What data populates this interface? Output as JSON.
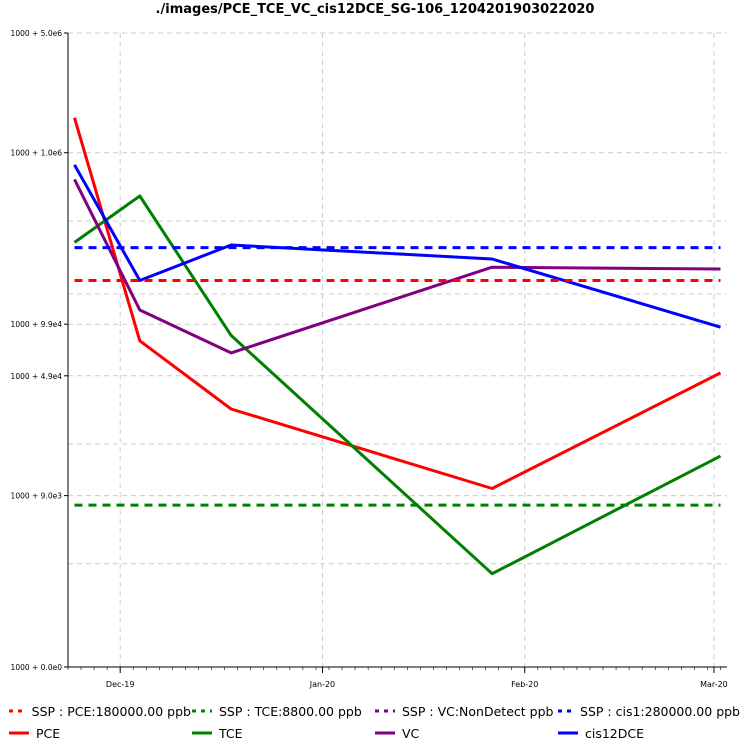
{
  "chart_data": {
    "type": "line",
    "title": "./images/PCE_TCE_VC_cis12DCE_SG-106_1204201903022020",
    "xlabel": "",
    "ylabel": "",
    "y_scale": "log",
    "grid": true,
    "legend_position": "bottom",
    "x_ticks": [
      {
        "label": "Dec-19",
        "date": "2019-12-01"
      },
      {
        "label": "Jan-20",
        "date": "2020-01-01"
      },
      {
        "label": "Feb-20",
        "date": "2020-02-01"
      },
      {
        "label": "Mar-20",
        "date": "2020-03-01"
      }
    ],
    "y_ticks": [
      {
        "label": "1000 + 0.0e0",
        "value": 1000
      },
      {
        "label": "1000 + 9.0e3",
        "value": 10000
      },
      {
        "label": "1000 + 4.9e4",
        "value": 50000
      },
      {
        "label": "1000 + 9.9e4",
        "value": 100000
      },
      {
        "label": "1000 + 1.0e6",
        "value": 1001000
      },
      {
        "label": "1000 + 5.0e6",
        "value": 5001000
      }
    ],
    "x_range": [
      "2019-11-23",
      "2020-03-03"
    ],
    "series": [
      {
        "name": "PCE",
        "color": "#ff0000",
        "style": "solid",
        "x": [
          "2019-11-24",
          "2019-12-04",
          "2019-12-18",
          "2020-01-27",
          "2020-03-02"
        ],
        "y": [
          1600000,
          80000,
          32000,
          11000,
          52000
        ]
      },
      {
        "name": "TCE",
        "color": "#008000",
        "style": "solid",
        "x": [
          "2019-11-24",
          "2019-12-04",
          "2019-12-18",
          "2020-01-27",
          "2020-03-02"
        ],
        "y": [
          300000,
          560000,
          86000,
          3500,
          17000
        ]
      },
      {
        "name": "VC",
        "color": "#800080",
        "style": "solid",
        "x": [
          "2019-11-24",
          "2019-12-04",
          "2019-12-18",
          "2020-01-27",
          "2020-03-02"
        ],
        "y": [
          700000,
          121000,
          68000,
          215000,
          210000
        ]
      },
      {
        "name": "cis12DCE",
        "color": "#0000ff",
        "style": "solid",
        "x": [
          "2019-11-24",
          "2019-12-04",
          "2019-12-18",
          "2020-01-27",
          "2020-03-02"
        ],
        "y": [
          850000,
          180000,
          290000,
          240000,
          96000
        ]
      },
      {
        "name": "SSP : PCE:180000.00 ppb",
        "color": "#ff0000",
        "style": "dashed",
        "x": [
          "2019-11-24",
          "2020-03-02"
        ],
        "y": [
          180000,
          180000
        ]
      },
      {
        "name": "SSP : TCE:8800.00 ppb",
        "color": "#008000",
        "style": "dashed",
        "x": [
          "2019-11-24",
          "2020-03-02"
        ],
        "y": [
          8800,
          8800
        ]
      },
      {
        "name": "SSP : cis1:280000.00 ppb",
        "color": "#0000ff",
        "style": "dashed",
        "x": [
          "2019-11-24",
          "2020-03-02"
        ],
        "y": [
          280000,
          280000
        ]
      }
    ],
    "legend": [
      [
        {
          "label": "SSP : PCE:180000.00 ppb",
          "color": "#ff0000",
          "style": "dashed"
        },
        {
          "label": "SSP : TCE:8800.00 ppb",
          "color": "#008000",
          "style": "dashed"
        },
        {
          "label": "SSP : VC:NonDetect ppb",
          "color": "#800080",
          "style": "dashed"
        },
        {
          "label": "SSP : cis1:280000.00 ppb",
          "color": "#0000ff",
          "style": "dashed"
        }
      ],
      [
        {
          "label": "PCE",
          "color": "#ff0000",
          "style": "solid"
        },
        {
          "label": "TCE",
          "color": "#008000",
          "style": "solid"
        },
        {
          "label": "VC",
          "color": "#800080",
          "style": "solid"
        },
        {
          "label": "cis12DCE",
          "color": "#0000ff",
          "style": "solid"
        }
      ]
    ]
  }
}
